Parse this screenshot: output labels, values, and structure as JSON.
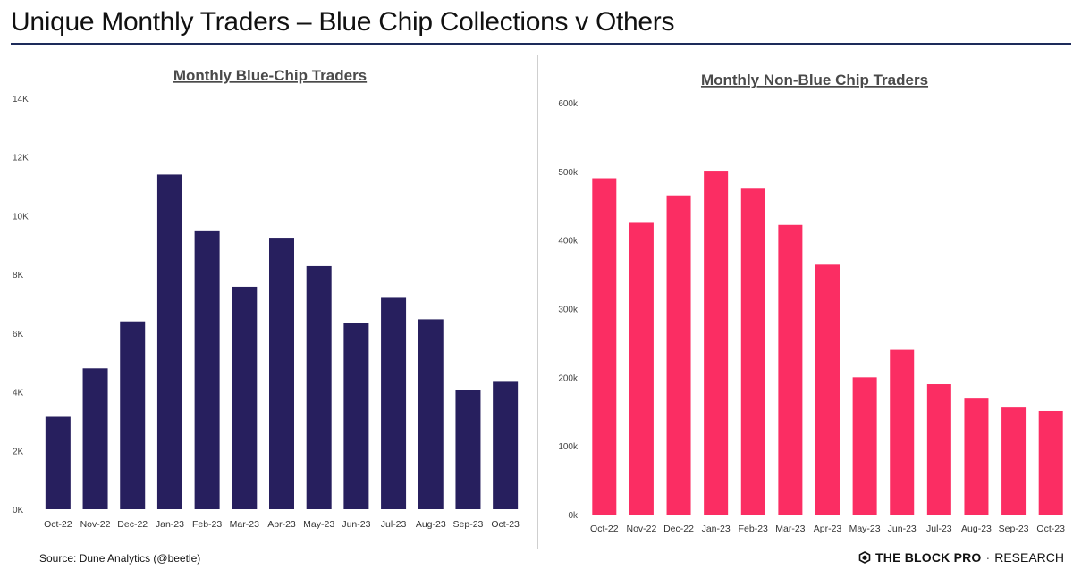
{
  "header": {
    "title": "Unique Monthly Traders – Blue Chip Collections v Others"
  },
  "footer": {
    "source": "Source: Dune Analytics (@beetle)",
    "brand_name": "THE BLOCK PRO",
    "brand_sep": "·",
    "brand_suffix": "RESEARCH"
  },
  "colors": {
    "blue_chip_bar": "#271f5e",
    "non_blue_chip_bar": "#fb2d63",
    "title_rule": "#1d2b5a"
  },
  "chart_data": [
    {
      "type": "bar",
      "title": "Monthly Blue-Chip Traders",
      "categories": [
        "Oct-22",
        "Nov-22",
        "Dec-22",
        "Jan-23",
        "Feb-23",
        "Mar-23",
        "Apr-23",
        "May-23",
        "Jun-23",
        "Jul-23",
        "Aug-23",
        "Sep-23",
        "Oct-23"
      ],
      "values": [
        3150,
        4800,
        6400,
        11400,
        9500,
        7580,
        9250,
        8280,
        6340,
        7230,
        6470,
        4060,
        4340
      ],
      "ylim": [
        0,
        14000
      ],
      "yticks": [
        0,
        2000,
        4000,
        6000,
        8000,
        10000,
        12000,
        14000
      ],
      "ytick_labels": [
        "0K",
        "2K",
        "4K",
        "6K",
        "8K",
        "10K",
        "12K",
        "14K"
      ],
      "xlabel": "",
      "ylabel": "",
      "grid": false,
      "legend": "none"
    },
    {
      "type": "bar",
      "title": "Monthly Non-Blue Chip Traders",
      "categories": [
        "Oct-22",
        "Nov-22",
        "Dec-22",
        "Jan-23",
        "Feb-23",
        "Mar-23",
        "Apr-23",
        "May-23",
        "Jun-23",
        "Jul-23",
        "Aug-23",
        "Sep-23",
        "Oct-23"
      ],
      "values": [
        490000,
        425000,
        465000,
        501000,
        476000,
        422000,
        364000,
        200000,
        240000,
        190000,
        169000,
        156000,
        151000
      ],
      "ylim": [
        0,
        600000
      ],
      "yticks": [
        0,
        100000,
        200000,
        300000,
        400000,
        500000,
        600000
      ],
      "ytick_labels": [
        "0k",
        "100k",
        "200k",
        "300k",
        "400k",
        "500k",
        "600k"
      ],
      "xlabel": "",
      "ylabel": "",
      "grid": false,
      "legend": "none"
    }
  ]
}
